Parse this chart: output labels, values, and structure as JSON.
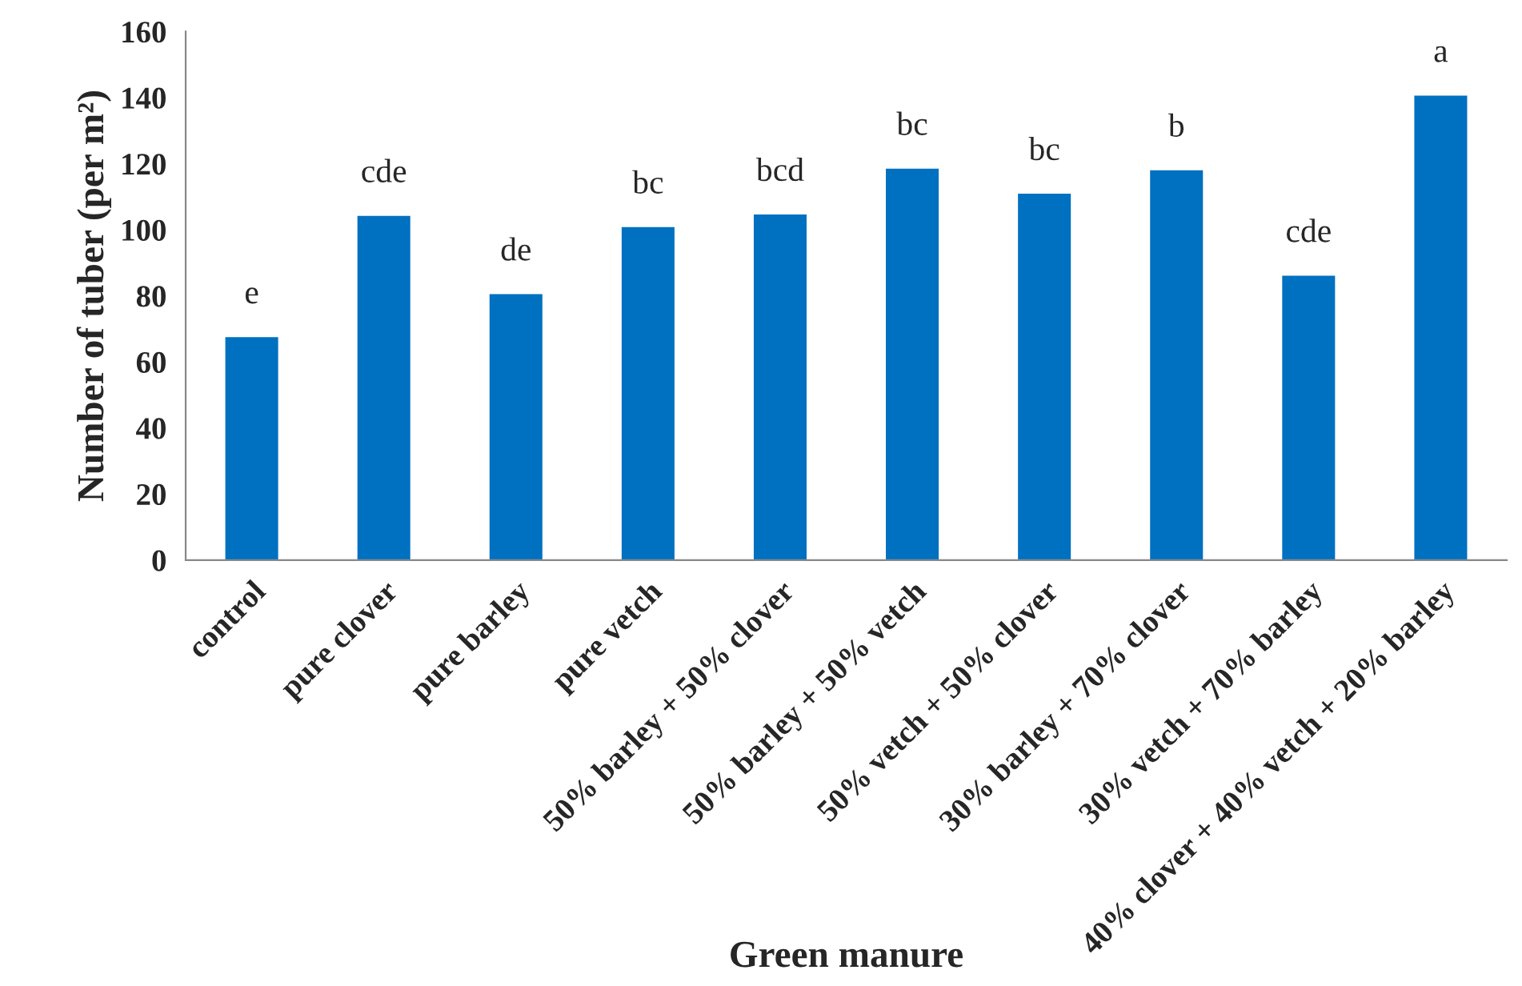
{
  "chart_data": {
    "type": "bar",
    "xlabel": "Green manure",
    "ylabel": "Number of tuber (per m²)",
    "categories": [
      "control",
      "pure clover",
      "pure barley",
      "pure vetch",
      "50% barley + 50% clover",
      "50% barley + 50% vetch",
      "50% vetch + 50% clover",
      "30% barley + 70% clover",
      "30% vetch + 70% barley",
      "40% clover + 40% vetch + 20% barley"
    ],
    "values": [
      67.5,
      104.2,
      80.5,
      100.8,
      104.6,
      118.5,
      110.9,
      118,
      86.1,
      140.6
    ],
    "color": "#0070c0",
    "ylim": [
      0,
      160
    ],
    "yticks": [
      0,
      20,
      40,
      60,
      80,
      100,
      120,
      140,
      160
    ],
    "grid": false,
    "legend": false,
    "annotations": [
      {
        "text": "e",
        "x": "control",
        "y": 67.5
      },
      {
        "text": "cde",
        "x": "pure clover",
        "y": 104.2
      },
      {
        "text": "de",
        "x": "pure barley",
        "y": 80.5
      },
      {
        "text": "bc",
        "x": "pure vetch",
        "y": 100.8
      },
      {
        "text": "bcd",
        "x": "50% barley + 50% clover",
        "y": 104.6
      },
      {
        "text": "bc",
        "x": "50% barley + 50% vetch",
        "y": 118.5
      },
      {
        "text": "bc",
        "x": "50% vetch + 50% clover",
        "y": 110.9
      },
      {
        "text": "b",
        "x": "30% barley + 70% clover",
        "y": 118
      },
      {
        "text": "cde",
        "x": "30% vetch + 70% barley",
        "y": 86.1
      },
      {
        "text": "a",
        "x": "40% clover + 40% vetch + 20% barley",
        "y": 140.6
      }
    ]
  }
}
